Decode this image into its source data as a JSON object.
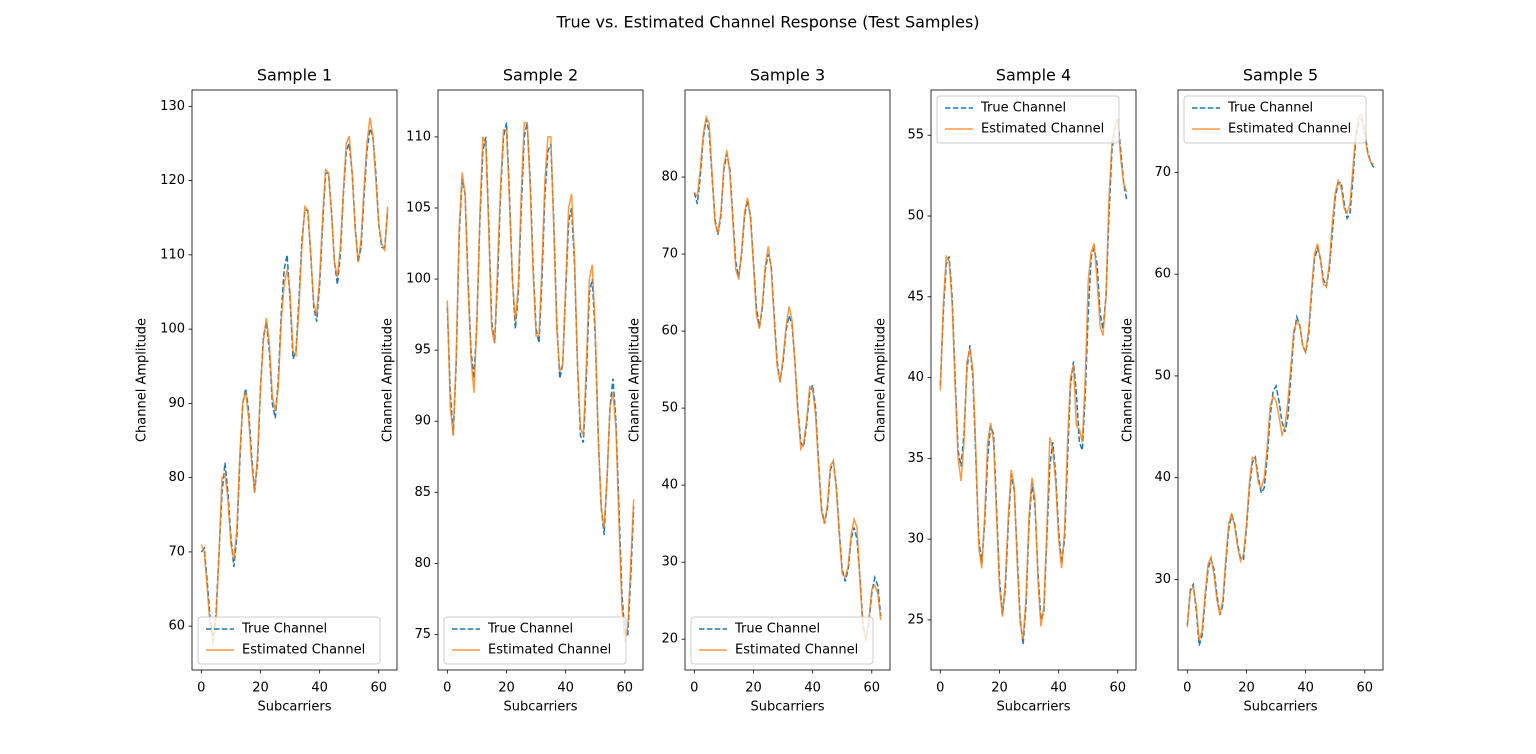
{
  "title": "True vs. Estimated Channel Response (Test Samples)",
  "chart_data": [
    {
      "type": "line",
      "title": "Sample 1",
      "xlabel": "Subcarriers",
      "ylabel": "Channel Amplitude",
      "legend": "lower left",
      "x": [
        0,
        1,
        2,
        3,
        4,
        5,
        6,
        7,
        8,
        9,
        10,
        11,
        12,
        13,
        14,
        15,
        16,
        17,
        18,
        19,
        20,
        21,
        22,
        23,
        24,
        25,
        26,
        27,
        28,
        29,
        30,
        31,
        32,
        33,
        34,
        35,
        36,
        37,
        38,
        39,
        40,
        41,
        42,
        43,
        44,
        45,
        46,
        47,
        48,
        49,
        50,
        51,
        52,
        53,
        54,
        55,
        56,
        57,
        58,
        59,
        60,
        61,
        62,
        63
      ],
      "xlim": [
        -3.15,
        66.15
      ],
      "xticks": [
        0,
        20,
        40,
        60
      ],
      "ylim": [
        54.1,
        132.2
      ],
      "yticks": [
        60,
        70,
        80,
        90,
        100,
        110,
        120,
        130
      ],
      "series": [
        {
          "name": "True Channel",
          "color": "#1f77b4",
          "linestyle": "dashed",
          "values": [
            70,
            70.5,
            66,
            61,
            58,
            62,
            70,
            78,
            82,
            78,
            72,
            68,
            72,
            82,
            90,
            92,
            89,
            83,
            78,
            82,
            92,
            99,
            101,
            97,
            90,
            88,
            93,
            102,
            108,
            110,
            104,
            96,
            97,
            104,
            112,
            116,
            116,
            110,
            103,
            101,
            106,
            114,
            121,
            121,
            116,
            109,
            106,
            110,
            118,
            124,
            125,
            121,
            114,
            109,
            111,
            118,
            124,
            127,
            126,
            121,
            114,
            111,
            111,
            116
          ]
        },
        {
          "name": "Estimated Channel",
          "color": "#ff7f0e",
          "linestyle": "solid",
          "alpha": 0.8,
          "values": [
            71,
            70,
            65,
            60,
            57.5,
            61,
            70,
            80,
            80.5,
            77,
            71,
            69,
            73,
            83,
            90,
            91.5,
            88,
            82,
            78,
            83,
            92,
            98.5,
            101.5,
            98,
            91,
            89,
            92,
            101,
            106,
            108,
            105,
            97,
            96.5,
            103,
            111,
            116.5,
            116,
            110,
            103.5,
            102,
            107,
            115,
            121.5,
            121,
            115.5,
            109,
            107,
            111,
            118.5,
            125,
            126,
            121,
            113.5,
            109,
            112,
            119,
            125,
            128.5,
            126,
            120,
            114,
            111.5,
            110.5,
            116.5
          ]
        }
      ]
    },
    {
      "type": "line",
      "title": "Sample 2",
      "xlabel": "Subcarriers",
      "ylabel": "Channel Amplitude",
      "legend": "lower left",
      "x": [
        0,
        1,
        2,
        3,
        4,
        5,
        6,
        7,
        8,
        9,
        10,
        11,
        12,
        13,
        14,
        15,
        16,
        17,
        18,
        19,
        20,
        21,
        22,
        23,
        24,
        25,
        26,
        27,
        28,
        29,
        30,
        31,
        32,
        33,
        34,
        35,
        36,
        37,
        38,
        39,
        40,
        41,
        42,
        43,
        44,
        45,
        46,
        47,
        48,
        49,
        50,
        51,
        52,
        53,
        54,
        55,
        56,
        57,
        58,
        59,
        60,
        61,
        62,
        63
      ],
      "xlim": [
        -3.15,
        66.15
      ],
      "xticks": [
        0,
        20,
        40,
        60
      ],
      "ylim": [
        72.5,
        113.3
      ],
      "yticks": [
        75,
        80,
        85,
        90,
        95,
        100,
        105,
        110
      ],
      "series": [
        {
          "name": "True Channel",
          "color": "#1f77b4",
          "linestyle": "dashed",
          "values": [
            98,
            92,
            89,
            94,
            103,
            107,
            106,
            100,
            95,
            93,
            97,
            104,
            109,
            110,
            104,
            97,
            95.5,
            100,
            106,
            110,
            111,
            106,
            100,
            96.5,
            99,
            105,
            110,
            111,
            107,
            101,
            96.5,
            95.5,
            100,
            106,
            109,
            109.5,
            104,
            97,
            93,
            94,
            99,
            104,
            105,
            101,
            94,
            89,
            88.5,
            93,
            99,
            100,
            96,
            89,
            84,
            82,
            86,
            91,
            93,
            90,
            84,
            78,
            75,
            75,
            79,
            84
          ]
        },
        {
          "name": "Estimated Channel",
          "color": "#ff7f0e",
          "linestyle": "solid",
          "alpha": 0.8,
          "values": [
            98.5,
            91,
            89,
            94.5,
            103.5,
            107.5,
            106,
            99.5,
            94.5,
            92,
            97,
            104.5,
            110,
            109.5,
            103.5,
            96.5,
            95.5,
            101,
            106.5,
            110.5,
            110.5,
            105.5,
            100,
            97,
            99.5,
            106,
            111,
            111,
            106.5,
            100.5,
            96,
            96,
            101,
            107,
            110,
            110,
            103.5,
            96.5,
            93.5,
            94,
            99.5,
            105,
            106,
            101.5,
            94,
            89.5,
            89,
            94,
            100,
            101,
            96.5,
            89,
            84,
            82.5,
            86,
            91,
            92,
            89.5,
            83,
            77,
            74.5,
            75.5,
            80,
            84.5
          ]
        }
      ]
    },
    {
      "type": "line",
      "title": "Sample 3",
      "xlabel": "Subcarriers",
      "ylabel": "Channel Amplitude",
      "legend": "lower left",
      "x": [
        0,
        1,
        2,
        3,
        4,
        5,
        6,
        7,
        8,
        9,
        10,
        11,
        12,
        13,
        14,
        15,
        16,
        17,
        18,
        19,
        20,
        21,
        22,
        23,
        24,
        25,
        26,
        27,
        28,
        29,
        30,
        31,
        32,
        33,
        34,
        35,
        36,
        37,
        38,
        39,
        40,
        41,
        42,
        43,
        44,
        45,
        46,
        47,
        48,
        49,
        50,
        51,
        52,
        53,
        54,
        55,
        56,
        57,
        58,
        59,
        60,
        61,
        62,
        63
      ],
      "xlim": [
        -3.15,
        66.15
      ],
      "xticks": [
        0,
        20,
        40,
        60
      ],
      "ylim": [
        16.0,
        91.3
      ],
      "yticks": [
        20,
        30,
        40,
        50,
        60,
        70,
        80
      ],
      "series": [
        {
          "name": "True Channel",
          "color": "#1f77b4",
          "linestyle": "dashed",
          "values": [
            78,
            76.5,
            80,
            85,
            87.5,
            86,
            80,
            74.5,
            72.5,
            75,
            81,
            83,
            81,
            75,
            69,
            67,
            70,
            75,
            77,
            75,
            69,
            63,
            60.5,
            63,
            68,
            70,
            68.5,
            62,
            56,
            53.5,
            56,
            60,
            62,
            61,
            56,
            50,
            45.5,
            45,
            48,
            52,
            53,
            50,
            43,
            37,
            35,
            37,
            42,
            43,
            40,
            34,
            29,
            27.5,
            29,
            33,
            34.5,
            33,
            28,
            22,
            20,
            22,
            26,
            28,
            27,
            23
          ]
        },
        {
          "name": "Estimated Channel",
          "color": "#ff7f0e",
          "linestyle": "solid",
          "alpha": 0.8,
          "values": [
            78,
            77.5,
            81,
            85.5,
            87.8,
            87,
            80.5,
            74,
            72.7,
            75.5,
            81.5,
            83.5,
            80.5,
            74.5,
            68,
            66.7,
            70.5,
            75.5,
            77.3,
            74.5,
            68.5,
            62,
            60.3,
            63.5,
            68.5,
            71,
            68,
            61.5,
            55.5,
            53.3,
            56.5,
            60.5,
            63.2,
            61.5,
            56,
            49.5,
            44.7,
            45.5,
            48.5,
            52.8,
            52.5,
            49,
            42.5,
            36.5,
            35,
            37.5,
            42.5,
            43.2,
            39.5,
            33.5,
            28.5,
            28,
            29.5,
            33.5,
            35.6,
            34.5,
            27.5,
            21.5,
            19.8,
            22.5,
            26.5,
            27,
            26,
            22.5
          ]
        }
      ]
    },
    {
      "type": "line",
      "title": "Sample 4",
      "xlabel": "Subcarriers",
      "ylabel": "Channel Amplitude",
      "legend": "upper left",
      "x": [
        0,
        1,
        2,
        3,
        4,
        5,
        6,
        7,
        8,
        9,
        10,
        11,
        12,
        13,
        14,
        15,
        16,
        17,
        18,
        19,
        20,
        21,
        22,
        23,
        24,
        25,
        26,
        27,
        28,
        29,
        30,
        31,
        32,
        33,
        34,
        35,
        36,
        37,
        38,
        39,
        40,
        41,
        42,
        43,
        44,
        45,
        46,
        47,
        48,
        49,
        50,
        51,
        52,
        53,
        54,
        55,
        56,
        57,
        58,
        59,
        60,
        61,
        62,
        63
      ],
      "xlim": [
        -3.15,
        66.15
      ],
      "xticks": [
        0,
        20,
        40,
        60
      ],
      "ylim": [
        21.9,
        57.8
      ],
      "yticks": [
        25,
        30,
        35,
        40,
        45,
        50,
        55
      ],
      "series": [
        {
          "name": "True Channel",
          "color": "#1f77b4",
          "linestyle": "dashed",
          "values": [
            39.5,
            44,
            47,
            47.5,
            45,
            40,
            35.5,
            34.5,
            36.5,
            40.5,
            42,
            40,
            35,
            30,
            28.5,
            31,
            35,
            37,
            36.5,
            32,
            27.5,
            25.3,
            27,
            31,
            34,
            33,
            29,
            25,
            23.5,
            26,
            31,
            33.5,
            32,
            28,
            25,
            25.5,
            30,
            34.5,
            36,
            34,
            30.5,
            28.5,
            30,
            35,
            39.5,
            41,
            39,
            36,
            35.5,
            39,
            44,
            47.5,
            48,
            47,
            44,
            43,
            45,
            50,
            54,
            55.5,
            56,
            54,
            52,
            51
          ]
        },
        {
          "name": "Estimated Channel",
          "color": "#ff7f0e",
          "linestyle": "solid",
          "alpha": 0.8,
          "values": [
            39.2,
            44.5,
            47.5,
            47.2,
            44.5,
            39.5,
            35,
            33.6,
            36,
            41,
            41.8,
            40.5,
            35.5,
            29.5,
            28.2,
            31.5,
            36,
            37.2,
            36,
            31.5,
            27,
            25.2,
            27.5,
            31.5,
            34.3,
            33.2,
            28.5,
            24.8,
            23.8,
            26.5,
            31.5,
            33.8,
            32.5,
            27.5,
            24.6,
            25.8,
            30.5,
            36.3,
            35.5,
            33.5,
            30,
            28.2,
            30.5,
            36,
            40,
            40.8,
            37,
            36.8,
            36,
            40,
            46,
            47.8,
            48.3,
            46,
            43.2,
            42.6,
            45,
            51,
            54.5,
            55.5,
            56,
            53.5,
            52,
            51.5
          ]
        }
      ]
    },
    {
      "type": "line",
      "title": "Sample 5",
      "xlabel": "Subcarriers",
      "ylabel": "Channel Amplitude",
      "legend": "upper left",
      "x": [
        0,
        1,
        2,
        3,
        4,
        5,
        6,
        7,
        8,
        9,
        10,
        11,
        12,
        13,
        14,
        15,
        16,
        17,
        18,
        19,
        20,
        21,
        22,
        23,
        24,
        25,
        26,
        27,
        28,
        29,
        30,
        31,
        32,
        33,
        34,
        35,
        36,
        37,
        38,
        39,
        40,
        41,
        42,
        43,
        44,
        45,
        46,
        47,
        48,
        49,
        50,
        51,
        52,
        53,
        54,
        55,
        56,
        57,
        58,
        59,
        60,
        61,
        62,
        63
      ],
      "xlim": [
        -3.15,
        66.15
      ],
      "xticks": [
        0,
        20,
        40,
        60
      ],
      "ylim": [
        21.1,
        78.1
      ],
      "yticks": [
        30,
        40,
        50,
        60,
        70
      ],
      "series": [
        {
          "name": "True Channel",
          "color": "#1f77b4",
          "linestyle": "dashed",
          "values": [
            25.5,
            29,
            29.5,
            27,
            23.5,
            24.5,
            28,
            31,
            32,
            31,
            28.5,
            26.5,
            27.5,
            31.5,
            35,
            36.3,
            35.5,
            33.5,
            32,
            32,
            35,
            39,
            41.5,
            42,
            40,
            38.5,
            39,
            42,
            46,
            48.5,
            49,
            47.5,
            45.5,
            44.5,
            46,
            50,
            54,
            55.8,
            55,
            53,
            52.3,
            54,
            58,
            61.5,
            62.6,
            61.5,
            59.5,
            58.8,
            60.5,
            64,
            67.5,
            69,
            69,
            67,
            65.5,
            66,
            69.5,
            73.5,
            75,
            75.3,
            74,
            72,
            71,
            70.5
          ]
        },
        {
          "name": "Estimated Channel",
          "color": "#ff7f0e",
          "linestyle": "solid",
          "alpha": 0.8,
          "values": [
            25.3,
            28.8,
            29.3,
            27.5,
            24,
            25,
            28.5,
            31.5,
            32.2,
            30.5,
            28,
            26.5,
            28,
            32,
            35.5,
            36.5,
            35.2,
            33.2,
            31.8,
            32.5,
            35.5,
            39.5,
            42,
            41.8,
            39.5,
            39,
            40,
            43,
            47,
            48,
            47.5,
            46,
            44.2,
            45,
            47.5,
            51,
            54.5,
            55.3,
            55,
            53,
            52.3,
            54.5,
            58.5,
            62,
            63,
            61.5,
            59,
            58.8,
            61,
            65,
            68,
            69.2,
            68.5,
            66.5,
            66,
            67,
            70.5,
            74,
            75.5,
            75.7,
            73.5,
            71.8,
            71,
            70.8
          ]
        }
      ]
    }
  ]
}
